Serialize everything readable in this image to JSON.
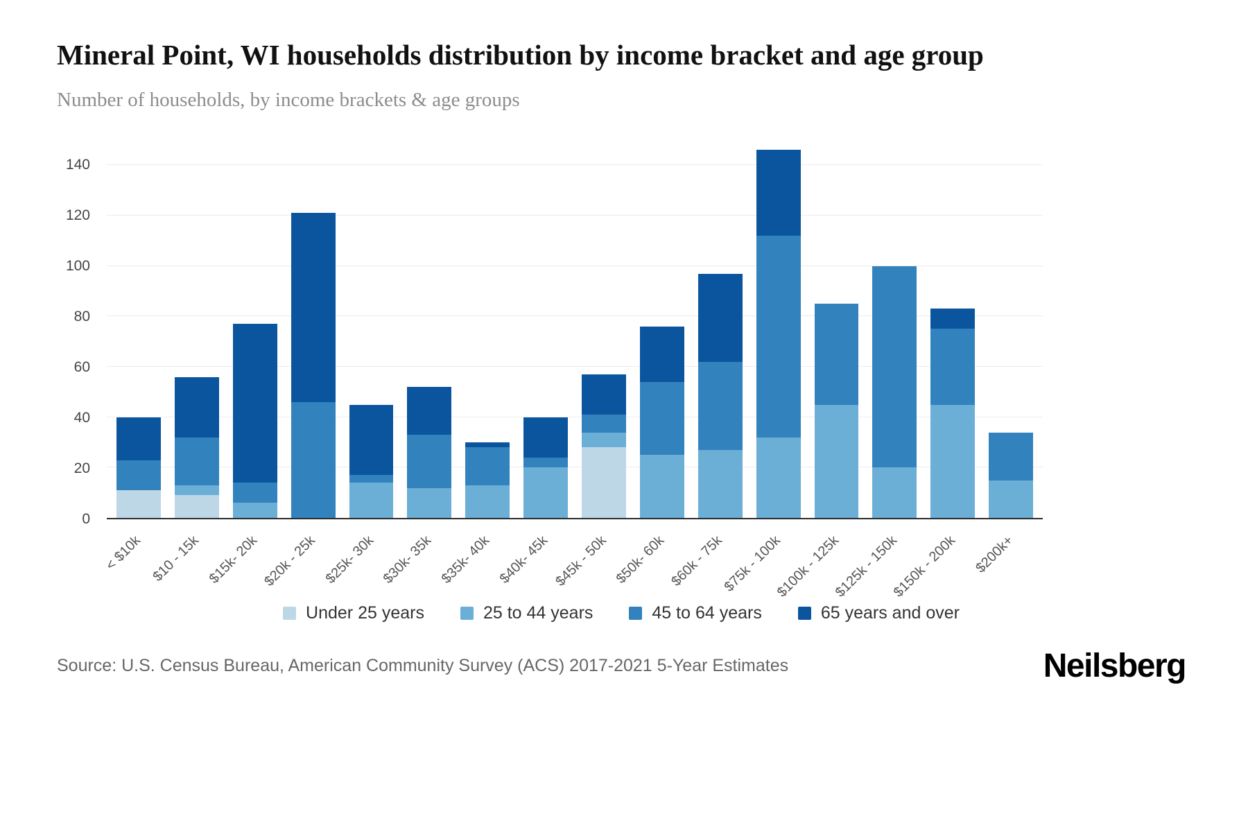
{
  "header": {
    "title": "Mineral Point, WI households distribution by income bracket and age group",
    "subtitle": "Number of households, by income brackets & age groups"
  },
  "footer": {
    "source": "Source: U.S. Census Bureau, American Community Survey (ACS) 2017-2021 5-Year Estimates",
    "brand": "Neilsberg"
  },
  "chart_data": {
    "type": "bar",
    "stacked": true,
    "title": "Mineral Point, WI households distribution by income bracket and age group",
    "xlabel": "",
    "ylabel": "Number of households",
    "ylim": [
      0,
      140
    ],
    "yticks": [
      0,
      20,
      40,
      60,
      80,
      100,
      120,
      140
    ],
    "grid": true,
    "legend_position": "bottom",
    "categories": [
      "< $10k",
      "$10 - 15k",
      "$15k- 20k",
      "$20k - 25k",
      "$25k- 30k",
      "$30k- 35k",
      "$35k- 40k",
      "$40k- 45k",
      "$45k - 50k",
      "$50k- 60k",
      "$60k - 75k",
      "$75k - 100k",
      "$100k - 125k",
      "$125k - 150k",
      "$150k - 200k",
      "$200k+"
    ],
    "series": [
      {
        "name": "Under 25 years",
        "color": "#bdd7e7",
        "values": [
          11,
          9,
          0,
          0,
          0,
          0,
          0,
          0,
          28,
          0,
          0,
          0,
          0,
          0,
          0,
          0
        ]
      },
      {
        "name": "25 to 44 years",
        "color": "#6baed6",
        "values": [
          0,
          4,
          6,
          0,
          14,
          12,
          13,
          20,
          6,
          25,
          27,
          32,
          45,
          20,
          45,
          15
        ]
      },
      {
        "name": "45 to 64 years",
        "color": "#3182bd",
        "values": [
          12,
          19,
          8,
          46,
          3,
          21,
          15,
          4,
          7,
          29,
          35,
          80,
          40,
          80,
          30,
          19
        ]
      },
      {
        "name": "65 years and over",
        "color": "#0b559f",
        "values": [
          17,
          24,
          63,
          75,
          28,
          19,
          2,
          16,
          16,
          22,
          35,
          34,
          0,
          0,
          8,
          0
        ]
      }
    ]
  }
}
